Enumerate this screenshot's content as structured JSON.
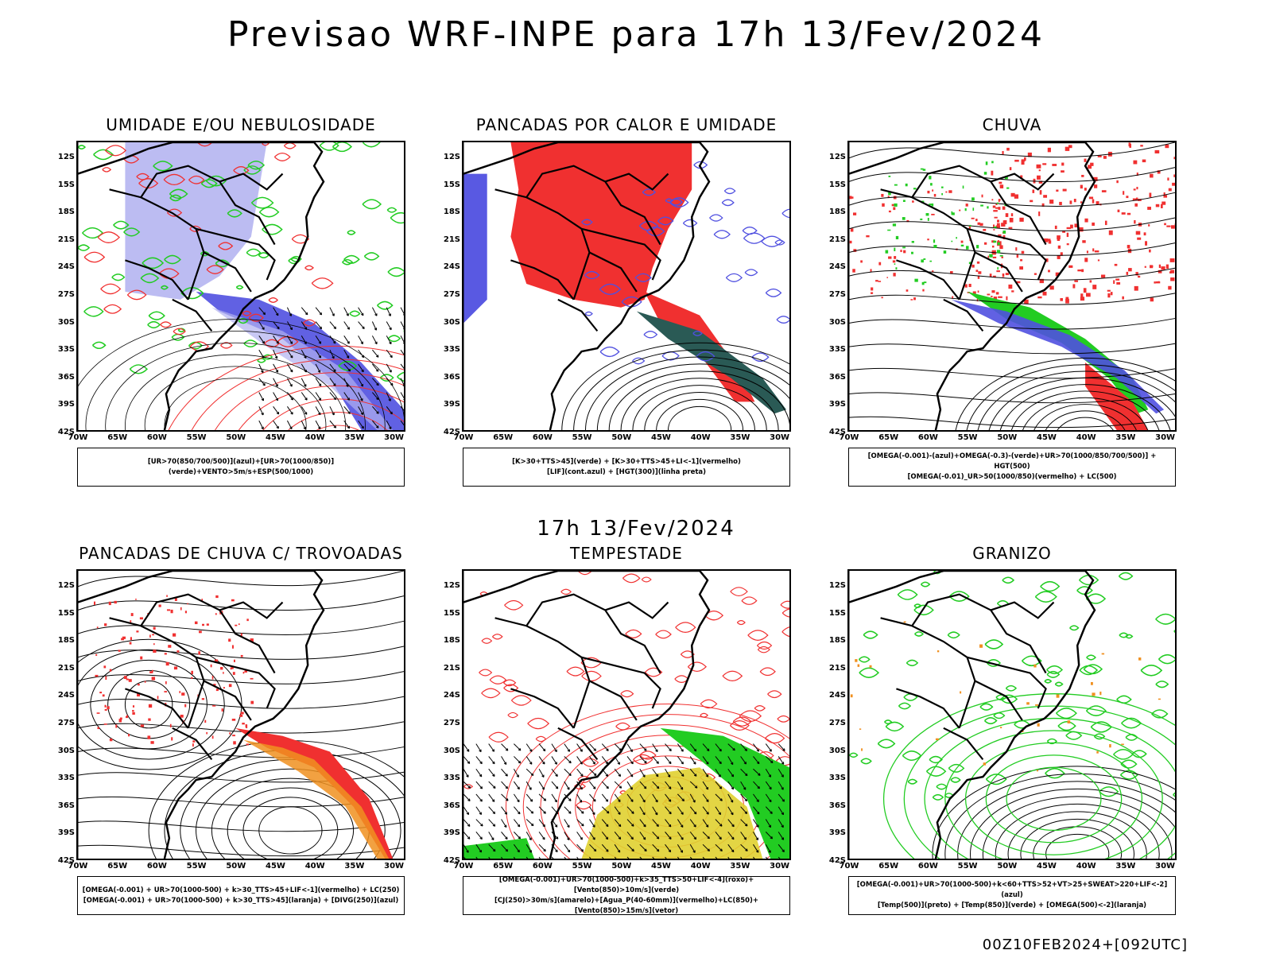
{
  "title": "Previsao WRF-INPE  para 17h 13/Fev/2024",
  "mid_time": "17h 13/Fev/2024",
  "footer": "00Z10FEB2024+[092UTC]",
  "lat_labels": [
    "12S",
    "15S",
    "18S",
    "21S",
    "24S",
    "27S",
    "30S",
    "33S",
    "36S",
    "39S",
    "42S"
  ],
  "lon_labels": [
    "70W",
    "65W",
    "60W",
    "55W",
    "50W",
    "45W",
    "40W",
    "35W",
    "30W"
  ],
  "colors": {
    "blue": "#3030ff",
    "green": "#22cc22",
    "red": "#f03030",
    "lavender": "#b0b0f0",
    "darkteal": "#2a5a55",
    "orange": "#f09020",
    "yellow": "#e0d030",
    "royal": "#5050e0"
  },
  "panels": [
    {
      "id": "umidade",
      "title": "UMIDADE E/OU NEBULOSIDADE",
      "legend": [
        "[UR>70(850/700/500)](azul)+[UR>70(1000/850)](verde)+VENTO>5m/s+ESP(500/1000)"
      ]
    },
    {
      "id": "pancadas-calor",
      "title": "PANCADAS POR CALOR E UMIDADE",
      "legend": [
        "[K>30+TTS>45](verde) + [K>30+TTS>45+LI<-1](vermelho)",
        "[LIF](cont.azul) + [HGT(300)](linha preta)"
      ]
    },
    {
      "id": "chuva",
      "title": "CHUVA",
      "legend": [
        "[OMEGA(-0.001)-(azul)+OMEGA(-0.3)-(verde)+UR>70(1000/850/700/500)] + HGT(500)",
        "[OMEGA(-0.01)_UR>50(1000/850)(vermelho) + LC(500)"
      ]
    },
    {
      "id": "pancadas-trovoadas",
      "title": "PANCADAS DE CHUVA C/ TROVOADAS",
      "legend": [
        "[OMEGA(-0.001) + UR>70(1000-500) + k>30_TTS>45+LIF<-1](vermelho) + LC(250)",
        "[OMEGA(-0.001) + UR>70(1000-500) + k>30_TTS>45](laranja) + [DIVG(250)](azul)"
      ]
    },
    {
      "id": "tempestade",
      "title": "TEMPESTADE",
      "legend": [
        "[OMEGA(-0.001)+UR>70(1000-500)+k>35_TTS>50+LIF<-4](roxo)+[Vento(850)>10m/s](verde)",
        "[CJ(250)>30m/s](amarelo)+[Agua_P(40-60mm)](vermelho)+LC(850)+[Vento(850)>15m/s](vetor)"
      ]
    },
    {
      "id": "granizo",
      "title": "GRANIZO",
      "legend": [
        "[OMEGA(-0.001)+UR>70(1000-500)+k<60+TTS>52+VT>25+SWEAT>220+LIF<-2](azul)",
        "[Temp(500)](preto) + [Temp(850)](verde) + [OMEGA(500)<-2](laranja)"
      ]
    }
  ]
}
